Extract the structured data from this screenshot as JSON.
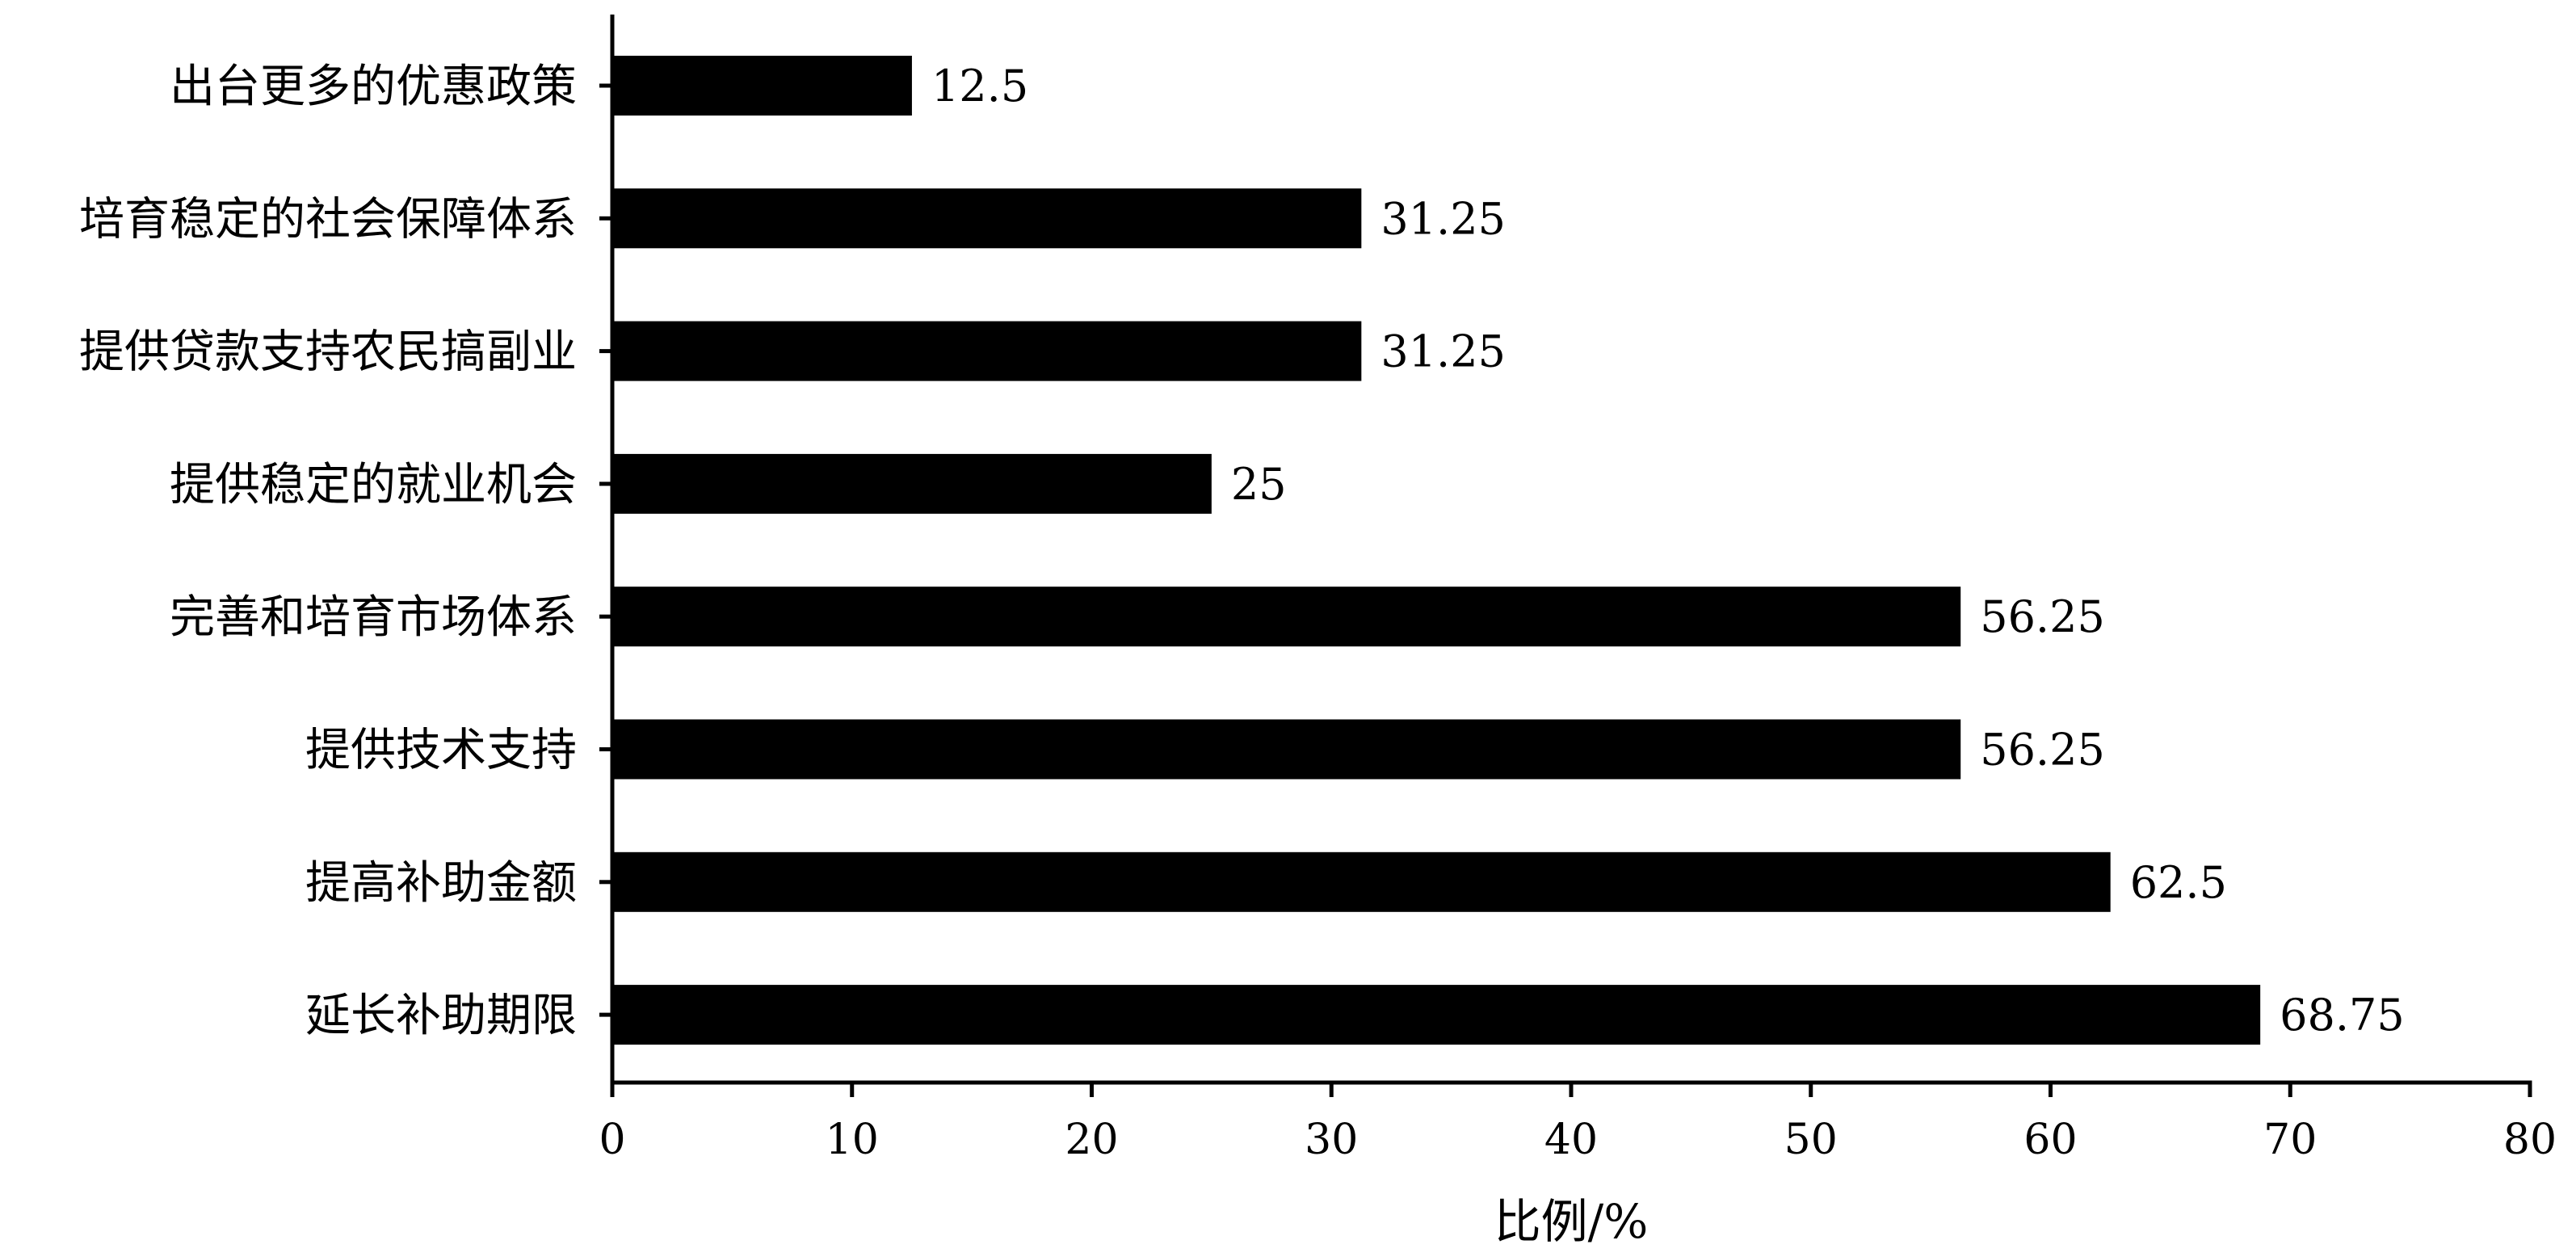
{
  "chart_data": {
    "type": "bar",
    "orientation": "horizontal",
    "categories": [
      "出台更多的优惠政策",
      "培育稳定的社会保障体系",
      "提供贷款支持农民搞副业",
      "提供稳定的就业机会",
      "完善和培育市场体系",
      "提供技术支持",
      "提高补助金额",
      "延长补助期限"
    ],
    "values": [
      12.5,
      31.25,
      31.25,
      25,
      56.25,
      56.25,
      62.5,
      68.75
    ],
    "value_labels": [
      "12.5",
      "31.25",
      "31.25",
      "25",
      "56.25",
      "56.25",
      "62.5",
      "68.75"
    ],
    "xlabel": "比例/%",
    "ylabel": "",
    "title": "",
    "xlim": [
      0,
      80
    ],
    "xticks": [
      0,
      10,
      20,
      30,
      40,
      50,
      60,
      70,
      80
    ],
    "xtick_labels": [
      "0",
      "10",
      "20",
      "30",
      "40",
      "50",
      "60",
      "70",
      "80"
    ],
    "bar_color": "#000000",
    "grid": false,
    "legend": "none"
  }
}
